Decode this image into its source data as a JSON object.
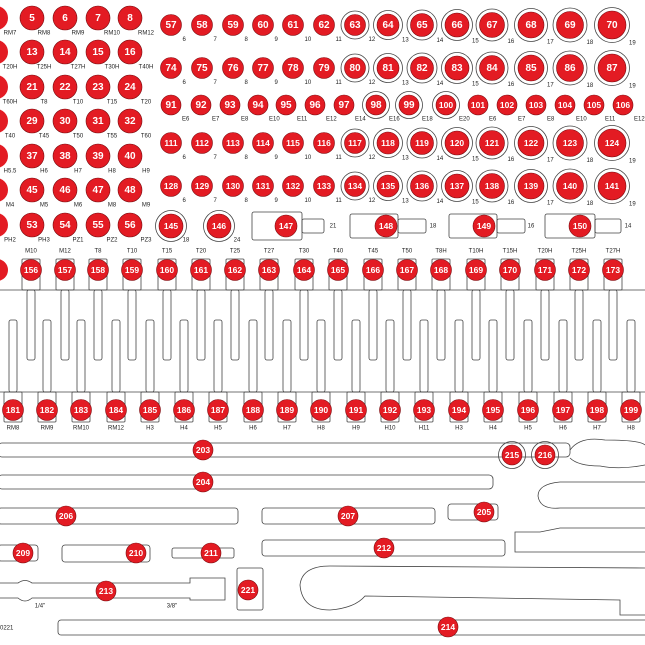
{
  "left_grid": [
    {
      "numbers": [
        5,
        6,
        7,
        8
      ],
      "labels": [
        "RM7",
        "RM8",
        "RM9",
        "RM10",
        "RM12"
      ]
    },
    {
      "numbers": [
        13,
        14,
        15,
        16
      ],
      "labels": [
        "T20H",
        "T25H",
        "T27H",
        "T30H",
        "T40H"
      ]
    },
    {
      "numbers": [
        21,
        22,
        23,
        24
      ],
      "labels": [
        "T60H",
        "T8",
        "T10",
        "T15",
        "T20"
      ]
    },
    {
      "numbers": [
        29,
        30,
        31,
        32
      ],
      "labels": [
        "T40",
        "T45",
        "T50",
        "T55",
        "T60"
      ]
    },
    {
      "numbers": [
        37,
        38,
        39,
        40
      ],
      "labels": [
        "H5.5",
        "H6",
        "H7",
        "H8",
        "H9"
      ]
    },
    {
      "numbers": [
        45,
        46,
        47,
        48
      ],
      "labels": [
        "M4",
        "M5",
        "M6",
        "M8",
        "M9"
      ]
    },
    {
      "numbers": [
        53,
        54,
        55,
        56
      ],
      "labels": [
        "PH2",
        "PH3",
        "PZ1",
        "PZ2",
        "PZ3"
      ]
    }
  ],
  "socket_rows": [
    {
      "numbers": [
        57,
        58,
        59,
        60,
        61,
        62,
        63,
        64,
        65,
        66,
        67,
        68,
        69,
        70
      ],
      "sizes": [
        6,
        7,
        8,
        9,
        10,
        11,
        12,
        13,
        14,
        15,
        16,
        17,
        18,
        19
      ]
    },
    {
      "numbers": [
        74,
        75,
        76,
        77,
        78,
        79,
        80,
        81,
        82,
        83,
        84,
        85,
        86,
        87
      ],
      "sizes": [
        6,
        7,
        8,
        9,
        10,
        11,
        12,
        13,
        14,
        15,
        16,
        17,
        18,
        19
      ]
    },
    {
      "numbers": [
        91,
        92,
        93,
        94,
        95,
        96,
        97,
        98,
        99,
        100,
        101,
        102,
        103,
        104,
        105,
        106
      ],
      "sizes": [
        "E6",
        "E7",
        "E8",
        "E10",
        "E11",
        "E12",
        "E14",
        "E16",
        "E18",
        "E20",
        "E6",
        "E7",
        "E8",
        "E10",
        "E11",
        "E12"
      ]
    },
    {
      "numbers": [
        111,
        112,
        113,
        114,
        115,
        116,
        117,
        118,
        119,
        120,
        121,
        122,
        123,
        124
      ],
      "sizes": [
        6,
        7,
        8,
        9,
        10,
        11,
        12,
        13,
        14,
        15,
        16,
        17,
        18,
        19
      ]
    },
    {
      "numbers": [
        128,
        129,
        130,
        131,
        132,
        133,
        134,
        135,
        136,
        137,
        138,
        139,
        140,
        141
      ],
      "sizes": [
        6,
        7,
        8,
        9,
        10,
        11,
        12,
        13,
        14,
        15,
        16,
        17,
        18,
        19
      ]
    }
  ],
  "extensions": {
    "numbers": [
      145,
      146,
      147,
      148,
      149,
      150
    ],
    "sizes": [
      18,
      24,
      21,
      18,
      16,
      14
    ]
  },
  "bits": {
    "top_labels": [
      "M10",
      "M12",
      "T8",
      "T10",
      "T15",
      "T20",
      "T25",
      "T27",
      "T30",
      "T40",
      "T45",
      "T50",
      "T8H",
      "T10H",
      "T15H",
      "T20H",
      "T25H",
      "T27H"
    ],
    "top_numbers": [
      156,
      157,
      158,
      159,
      160,
      161,
      162,
      163,
      164,
      165,
      166,
      167,
      168,
      169,
      170,
      171,
      172,
      173
    ],
    "bottom_numbers": [
      181,
      182,
      183,
      184,
      185,
      186,
      187,
      188,
      189,
      190,
      191,
      192,
      193,
      194,
      195,
      196,
      197,
      198,
      199
    ],
    "bottom_labels": [
      "RM8",
      "RM9",
      "RM10",
      "RM12",
      "H3",
      "H4",
      "H5",
      "H6",
      "H7",
      "H8",
      "H9",
      "H10",
      "H11",
      "H3",
      "H4",
      "H5",
      "H6",
      "H7",
      "H8"
    ]
  },
  "tools": [
    203,
    215,
    216,
    204,
    206,
    207,
    205,
    209,
    210,
    211,
    212,
    213,
    221,
    214
  ],
  "notes": [
    "1/4\"",
    "3/8\"",
    "0221"
  ]
}
